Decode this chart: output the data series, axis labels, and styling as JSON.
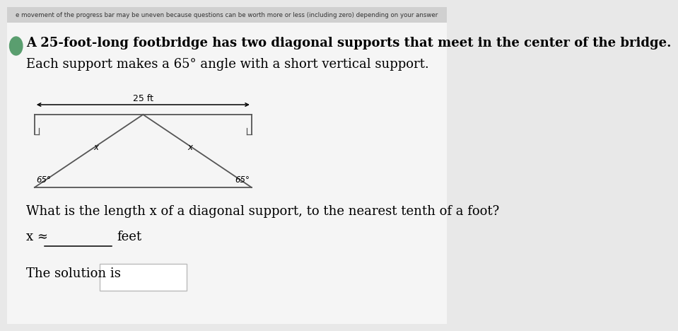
{
  "bg_color": "#e8e8e8",
  "white": "#ffffff",
  "text_color": "#000000",
  "header_text": "e movement of the progress bar may be uneven because questions can be worth more or less (including zero) depending on your answer",
  "line1": "A 25-foot-long footbridge has two diagonal supports that meet in the center of the bridge.",
  "line2": "Each support makes a 65° angle with a short vertical support.",
  "question_text": "What is the length x of a diagonal support, to the nearest tenth of a foot?",
  "answer_prefix": "x ≈",
  "answer_suffix": "feet",
  "solution_label": "The solution is",
  "label_25ft": "25 ft",
  "label_65_left": "65°",
  "label_65_right": "65°",
  "label_x_left": "x",
  "label_x_right": "x",
  "bridge_color": "#555555",
  "bridge_linewidth": 1.3,
  "arrow_color": "#000000",
  "icon_color": "#5a9e6f"
}
